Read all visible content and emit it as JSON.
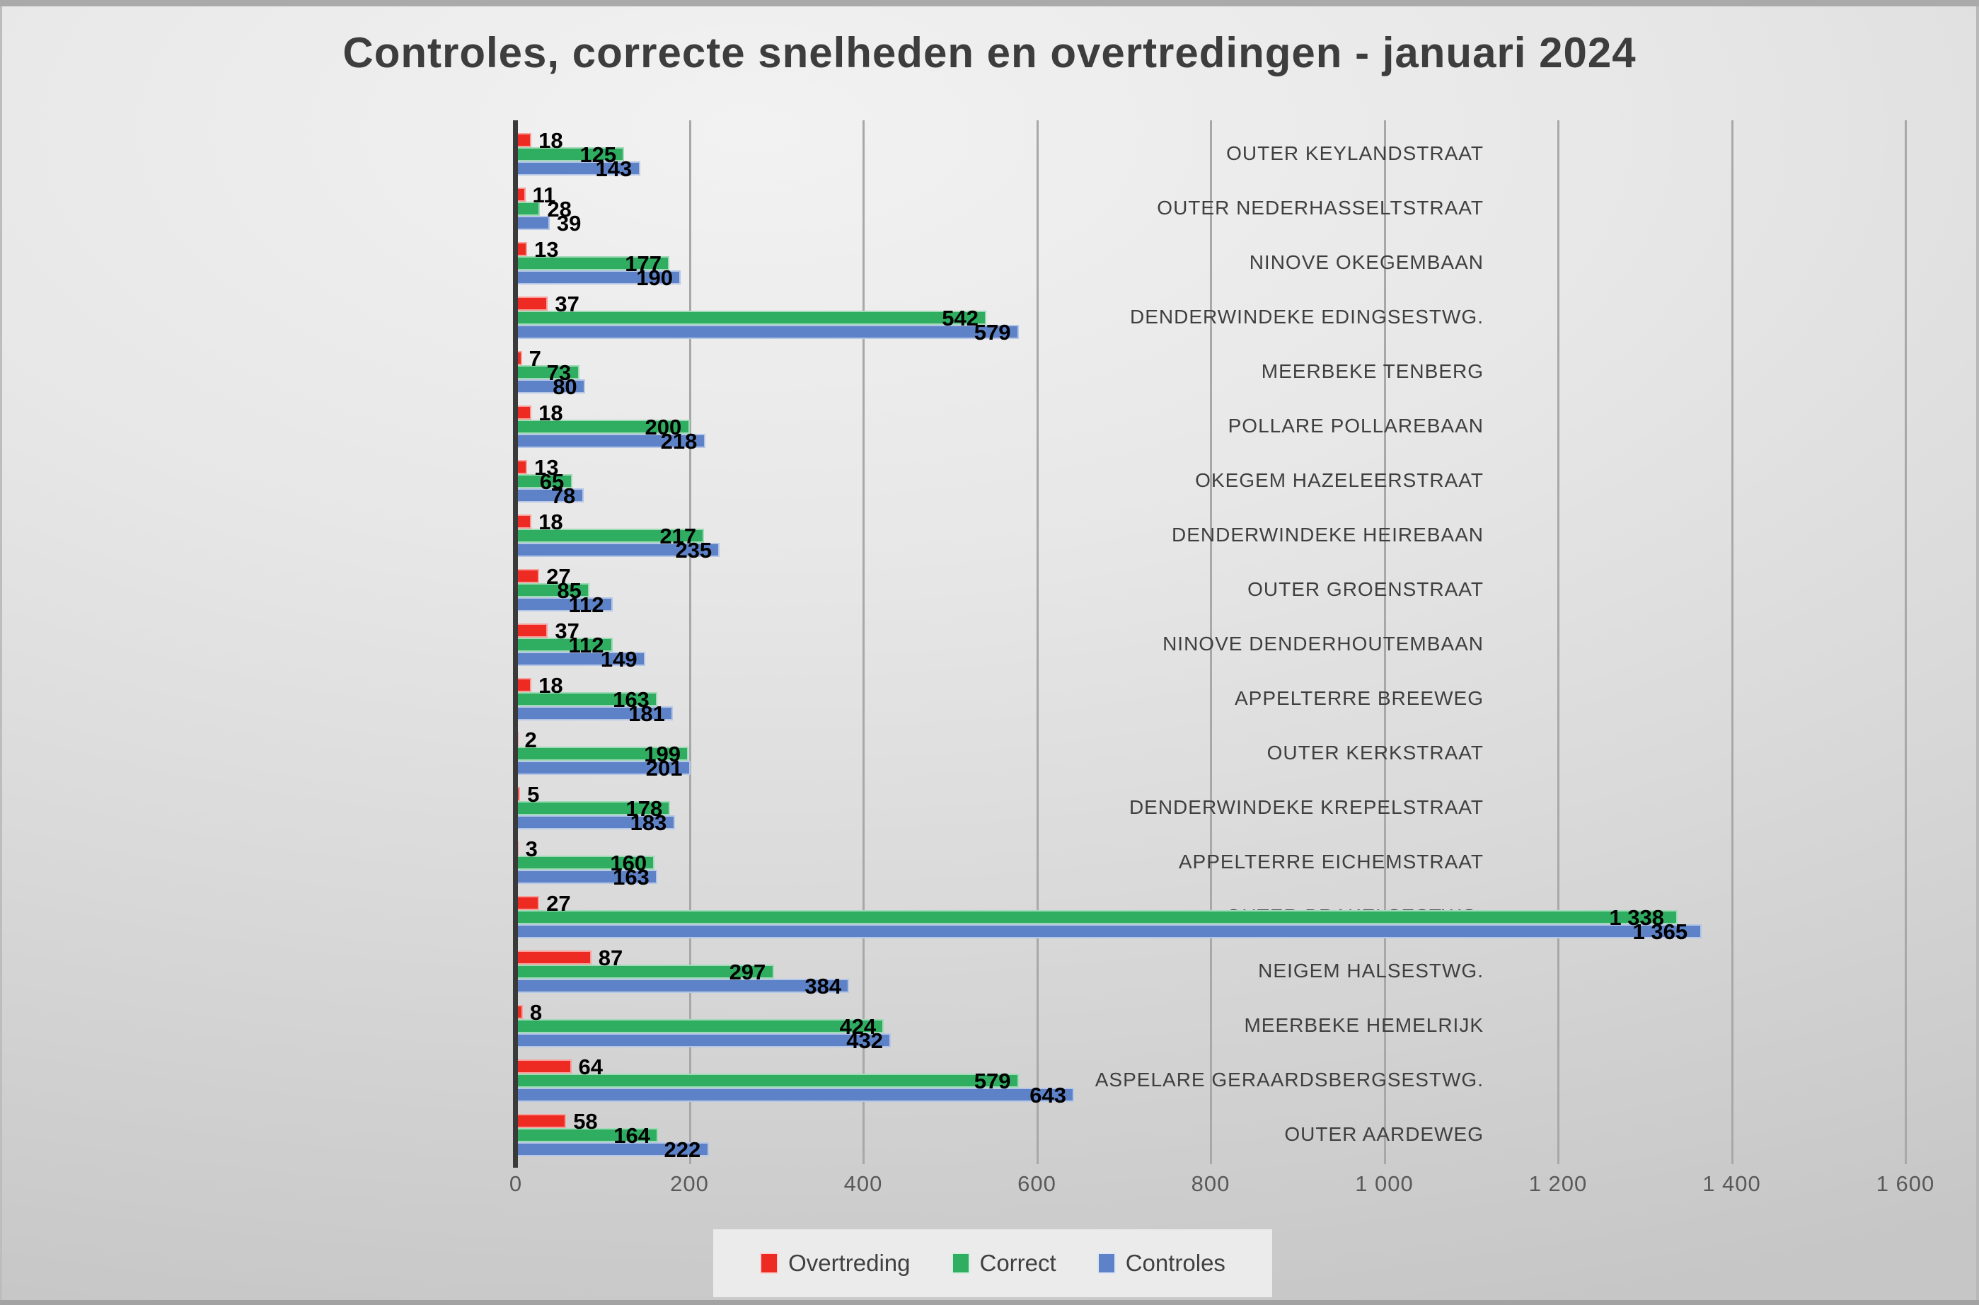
{
  "title": "Controles, correcte snelheden en overtredingen - januari 2024",
  "legend": {
    "items": [
      {
        "label": "Overtreding",
        "color": "#ee2b23"
      },
      {
        "label": "Correct",
        "color": "#2fae61"
      },
      {
        "label": "Controles",
        "color": "#5e82c7"
      }
    ]
  },
  "chart_data": {
    "type": "bar",
    "orientation": "horizontal",
    "title": "Controles, correcte snelheden en overtredingen - januari 2024",
    "categories": [
      "OUTER KEYLANDSTRAAT",
      "OUTER NEDERHASSELTSTRAAT",
      "NINOVE OKEGEMBAAN",
      "DENDERWINDEKE EDINGSESTWG.",
      "MEERBEKE TENBERG",
      "POLLARE POLLAREBAAN",
      "OKEGEM HAZELEERSTRAAT",
      "DENDERWINDEKE HEIREBAAN",
      "OUTER GROENSTRAAT",
      "NINOVE DENDERHOUTEMBAAN",
      "APPELTERRE BREEWEG",
      "OUTER KERKSTRAAT",
      "DENDERWINDEKE KREPELSTRAAT",
      "APPELTERRE EICHEMSTRAAT",
      "OUTER BRAKELSESTWG.",
      "NEIGEM HALSESTWG.",
      "MEERBEKE HEMELRIJK",
      "ASPELARE GERAARDSBERGSESTWG.",
      "OUTER AARDEWEG"
    ],
    "series": [
      {
        "name": "Overtreding",
        "color": "#ee2b23",
        "values": [
          18,
          11,
          13,
          37,
          7,
          18,
          13,
          18,
          27,
          37,
          18,
          2,
          5,
          3,
          27,
          87,
          8,
          64,
          58
        ]
      },
      {
        "name": "Correct",
        "color": "#2fae61",
        "values": [
          125,
          28,
          177,
          542,
          73,
          200,
          65,
          217,
          85,
          112,
          163,
          199,
          178,
          160,
          1338,
          297,
          424,
          579,
          164
        ]
      },
      {
        "name": "Controles",
        "color": "#5e82c7",
        "values": [
          143,
          39,
          190,
          579,
          80,
          218,
          78,
          235,
          112,
          149,
          181,
          201,
          183,
          163,
          1365,
          384,
          432,
          643,
          222
        ]
      }
    ],
    "xlim": [
      0,
      1600
    ],
    "xticks": [
      0,
      200,
      400,
      600,
      800,
      1000,
      1200,
      1400,
      1600
    ],
    "xtick_labels": [
      "0",
      "200",
      "400",
      "600",
      "800",
      "1 000",
      "1 200",
      "1 400",
      "1 600"
    ],
    "grid": "vertical",
    "legend_position": "bottom",
    "value_labels": true
  }
}
